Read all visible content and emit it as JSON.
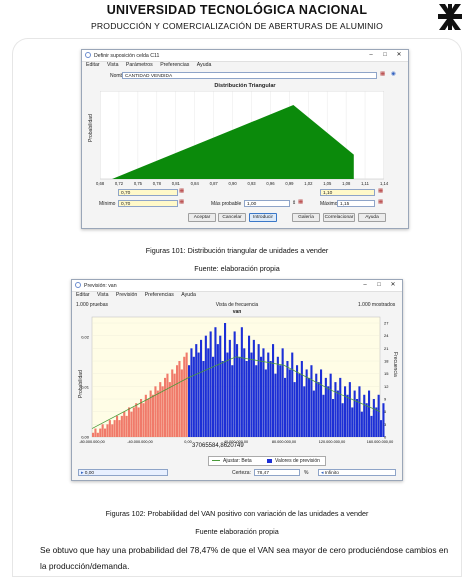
{
  "header": {
    "university": "UNIVERSIDAD TECNOLÓGICA NACIONAL",
    "subtitle": "PRODUCCIÓN Y COMERCIALIZACIÓN DE ABERTURAS DE ALUMINIO"
  },
  "colors": {
    "green": "#0b8a0b",
    "red": "#f07a6a",
    "blue": "#1c2fd6",
    "plot_bg": "#fffde6",
    "line": "#4a9a3a"
  },
  "window1": {
    "title": "Definir suposición celda C11",
    "menu": [
      "Editar",
      "Vista",
      "Parámetros",
      "Preferencias",
      "Ayuda"
    ],
    "name_label": "Nombre:",
    "name_value": "CANTIDAD VENDIDA",
    "chart_title": "Distribución Triangular",
    "ylabel": "Probabilidad",
    "min_label": "Mínimo",
    "min_value": "0,70",
    "mode_label": "Más probable",
    "mode_value": "1,00",
    "max_label": "Máximo",
    "max_value": "1,15",
    "left_marker": "0,70",
    "right_marker": "1,10",
    "buttons": [
      "Aceptar",
      "Cancelar",
      "Introducir",
      "Galería",
      "Correlacionar",
      "Ayuda"
    ]
  },
  "caption1": "Figuras 101: Distribución triangular de unidades a vender",
  "source1": "Fuente: elaboración propia",
  "window2": {
    "title": "Previsión: van",
    "menu": [
      "Editar",
      "Vista",
      "Previsión",
      "Preferencias",
      "Ayuda"
    ],
    "left_info": "1.000 pruebas",
    "center_info": "Vista de frecuencia",
    "right_info": "1.000 mostrados",
    "chart_title": "van",
    "ylabel_left": "Probabilidad",
    "ylabel_right": "Frecuencia",
    "value_label": "37065584,8620749",
    "legend": [
      "Ajustar: Beta",
      "Valores de previsión"
    ],
    "certainty_label": "Certeza:",
    "certainty_value": "78,47",
    "certainty_unit": "%",
    "left_field": "0,00",
    "right_field": "Infinito"
  },
  "caption2": "Figuras 102: Probabilidad del VAN positivo con variación de las unidades a vender",
  "source2": "Fuente elaboración propia",
  "paragraph": "Se obtuvo que hay una probabilidad del 78,47% de que el VAN sea mayor de cero produciéndose cambios en la producción/demanda.",
  "chart_data": [
    {
      "type": "area",
      "title": "Distribución Triangular",
      "xlabel": "",
      "ylabel": "Probabilidad",
      "x": [
        0.7,
        1.0,
        1.1
      ],
      "values": [
        0,
        1,
        0.33
      ],
      "x_ticks": [
        "0,68",
        "0,72",
        "0,75",
        "0,78",
        "0,81",
        "0,84",
        "0,87",
        "0,90",
        "0,93",
        "0,96",
        "0,99",
        "1,02",
        "1,05",
        "1,08",
        "1,11",
        "1,14"
      ]
    },
    {
      "type": "bar",
      "title": "van",
      "xlabel": "",
      "ylabel": "Probabilidad",
      "x_ticks": [
        "-80.000.000,00",
        "-40.000.000,00",
        "0,00",
        "40.000.000,00",
        "80.000.000,00",
        "120.000.000,00",
        "160.000.000,00"
      ],
      "y_ticks_left": [
        "0,00",
        "0,01",
        "0,02"
      ],
      "y_ticks_right": [
        "0",
        "3",
        "6",
        "9",
        "12",
        "15",
        "18",
        "21",
        "24",
        "27"
      ],
      "xlim": [
        -80000000,
        160000000
      ],
      "series": [
        {
          "name": "Valores de previsión",
          "bin_width": 2000000,
          "x_start": -80000000,
          "values": [
            1,
            2,
            1,
            2,
            3,
            2,
            3,
            4,
            3,
            4,
            5,
            4,
            5,
            6,
            5,
            7,
            6,
            7,
            8,
            7,
            9,
            8,
            10,
            9,
            11,
            10,
            12,
            11,
            13,
            12,
            14,
            15,
            13,
            16,
            15,
            17,
            18,
            16,
            19,
            20,
            17,
            21,
            19,
            22,
            20,
            23,
            18,
            24,
            21,
            25,
            19,
            26,
            22,
            24,
            18,
            27,
            20,
            23,
            17,
            25,
            22,
            19,
            26,
            21,
            18,
            24,
            20,
            23,
            17,
            22,
            19,
            21,
            16,
            20,
            18,
            22,
            15,
            19,
            17,
            21,
            14,
            18,
            16,
            20,
            13,
            17,
            15,
            18,
            12,
            16,
            14,
            17,
            11,
            15,
            13,
            16,
            10,
            14,
            12,
            15,
            9,
            13,
            11,
            14,
            8,
            12,
            10,
            13,
            7,
            11,
            9,
            12,
            6,
            10,
            8,
            11,
            5,
            9,
            7,
            10,
            4,
            8
          ]
        },
        {
          "name": "Ajustar: Beta",
          "x": [
            -80000000,
            -40000000,
            0,
            40000000,
            80000000,
            120000000,
            160000000
          ],
          "values": [
            2,
            8,
            14,
            19,
            17,
            11,
            6
          ]
        }
      ]
    }
  ]
}
